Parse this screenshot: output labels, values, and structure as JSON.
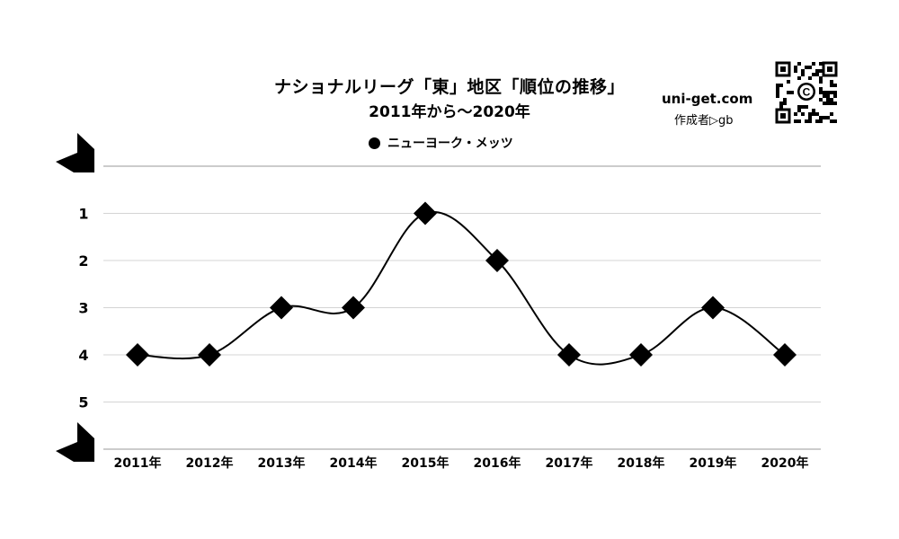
{
  "title": "ナショナルリーグ「東」地区「順位の推移」",
  "subtitle": "2011年から～2020年",
  "site": "uni-get.com",
  "author": "作成者▷gb",
  "qr_logo": "C",
  "chart_data": {
    "type": "line",
    "categories": [
      "2011年",
      "2012年",
      "2013年",
      "2014年",
      "2015年",
      "2016年",
      "2017年",
      "2018年",
      "2019年",
      "2020年"
    ],
    "series": [
      {
        "name": "ニューヨーク・メッツ",
        "values": [
          4,
          4,
          3,
          3,
          1,
          2,
          4,
          4,
          3,
          4
        ],
        "marker": "diamond",
        "color": "#000000"
      }
    ],
    "y_ticks": [
      "1",
      "2",
      "3",
      "4",
      "5"
    ],
    "ylim": [
      0,
      6
    ],
    "y_inverted": true,
    "grid": true,
    "legend_position": "top-center"
  }
}
